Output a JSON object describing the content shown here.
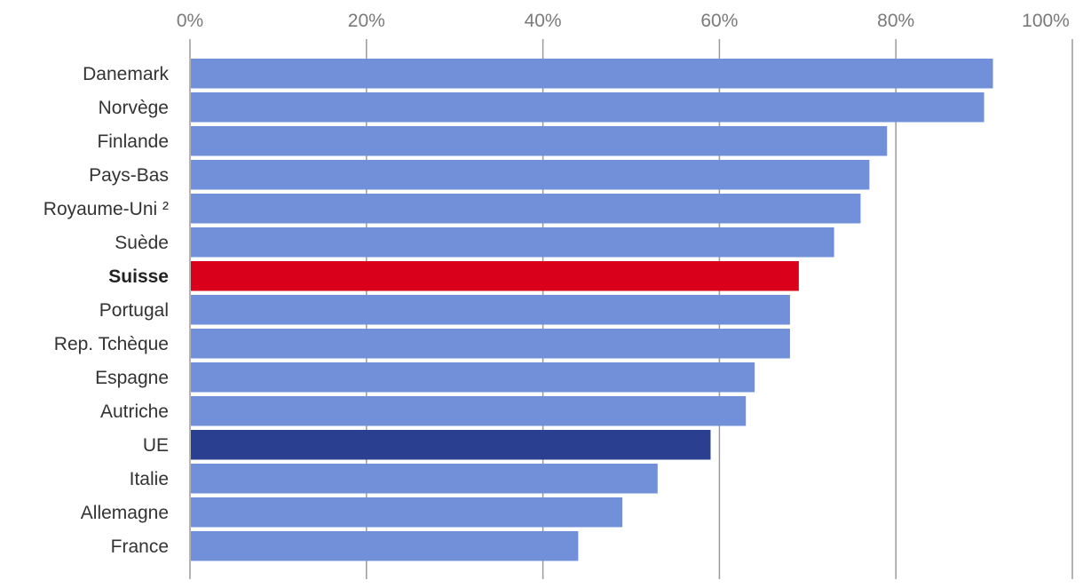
{
  "chart_data": {
    "type": "bar",
    "orientation": "horizontal",
    "title": "",
    "xlabel": "",
    "ylabel": "",
    "xlim": [
      0,
      100
    ],
    "x_ticks": [
      0,
      20,
      40,
      60,
      80,
      100
    ],
    "x_tick_labels": [
      "0%",
      "20%",
      "40%",
      "60%",
      "80%",
      "100%"
    ],
    "x_axis_position": "top",
    "grid": "vertical",
    "legend": "none",
    "categories": [
      "Danemark",
      "Norvège",
      "Finlande",
      "Pays-Bas",
      "Royaume-Uni ²",
      "Suède",
      "Suisse",
      "Portugal",
      "Rep. Tchèque",
      "Espagne",
      "Autriche",
      "UE",
      "Italie",
      "Allemagne",
      "France"
    ],
    "values": [
      91,
      90,
      79,
      77,
      76,
      73,
      69,
      68,
      68,
      64,
      63,
      59,
      53,
      49,
      44
    ],
    "highlight": {
      "Suisse": "#d9001b",
      "UE": "#2a3f8f"
    },
    "bold_categories": [
      "Suisse"
    ],
    "colors": {
      "default": "#7190d9",
      "highlight_suisse": "#d9001b",
      "highlight_ue": "#2a3f8f"
    }
  }
}
